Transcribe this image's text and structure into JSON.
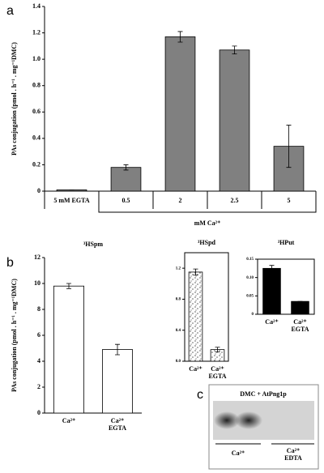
{
  "panels": [
    "a",
    "b",
    "c"
  ],
  "chart_data": [
    {
      "type": "bar",
      "ylabel": "PAs conjugation (pmol . h⁻¹ . mg⁻¹DMC)",
      "categories": [
        "5 mM EGTA",
        "0.5",
        "2",
        "2.5",
        "5"
      ],
      "values": [
        0.01,
        0.18,
        1.17,
        1.07,
        0.34
      ],
      "errors": [
        0,
        0.02,
        0.04,
        0.03,
        0.16
      ],
      "group_label": "mM Ca²⁺",
      "color": "#808080",
      "ylim": [
        0,
        1.4
      ],
      "yticks": [
        0,
        0.2,
        0.4,
        0.6,
        0.8,
        {
          "value": 1,
          "label": "1.0"
        },
        1.2,
        1.4
      ]
    },
    {
      "type": "bar",
      "title": "³HSpm",
      "ylabel": "PAs conjugation (pmol . h⁻¹ . mg⁻¹DMC)",
      "categories": [
        "Ca²⁺",
        "Ca²⁺ EGTA"
      ],
      "values": [
        9.8,
        4.9
      ],
      "errors": [
        0.2,
        0.4
      ],
      "color": "#ffffff",
      "ylim": [
        0,
        12
      ],
      "yticks": [
        0,
        2,
        4,
        6,
        8,
        10,
        12
      ]
    },
    {
      "type": "bar",
      "title": "³HSpd",
      "categories": [
        "Ca²⁺",
        "Ca²⁺ EGTA"
      ],
      "values": [
        1.15,
        0.15
      ],
      "errors": [
        0.04,
        0.03
      ],
      "color": "#ffffff",
      "fill_pattern": "stipple",
      "ylim": [
        0,
        1.4
      ],
      "yticks": [
        {
          "value": 0,
          "label": "0.0"
        },
        0.4,
        0.8,
        1.2
      ]
    },
    {
      "type": "bar",
      "title": "³HPut",
      "categories": [
        "Ca²⁺",
        "Ca²⁺ EGTA"
      ],
      "values": [
        0.125,
        0.035
      ],
      "errors": [
        0.008,
        0
      ],
      "color": "#000000",
      "ylim": [
        0,
        0.15
      ],
      "yticks": [
        0,
        0.05,
        {
          "value": 0.1,
          "label": "0.10"
        },
        0.15
      ]
    }
  ],
  "gel": {
    "title": "DMC + AtPng1p",
    "lanes": [
      "Ca²⁺",
      "Ca²⁺ EDTA"
    ]
  }
}
